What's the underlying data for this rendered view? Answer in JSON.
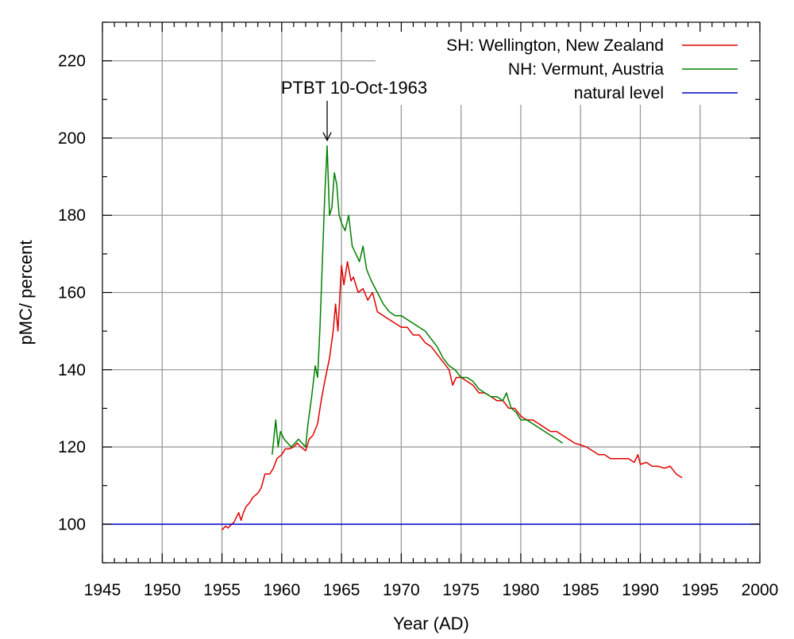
{
  "chart_data": {
    "type": "line",
    "xlabel": "Year (AD)",
    "ylabel": "pMC/ percent",
    "xlim": [
      1945,
      2000
    ],
    "ylim": [
      90,
      230
    ],
    "xticks": [
      1945,
      1950,
      1955,
      1960,
      1965,
      1970,
      1975,
      1980,
      1985,
      1990,
      1995,
      2000
    ],
    "yticks": [
      100,
      120,
      140,
      160,
      180,
      200,
      220
    ],
    "grid": true,
    "legend_position": "top-right",
    "annotation": {
      "text": "PTBT 10-Oct-1963",
      "x": 1963.8,
      "y": 199
    },
    "series": [
      {
        "name": "SH: Wellington, New Zealand",
        "color": "#e00000",
        "x": [
          1955.0,
          1955.3,
          1955.5,
          1955.8,
          1956.0,
          1956.4,
          1956.6,
          1956.8,
          1957.0,
          1957.3,
          1957.6,
          1958.0,
          1958.3,
          1958.6,
          1959.0,
          1959.3,
          1959.6,
          1960.0,
          1960.3,
          1960.6,
          1961.0,
          1961.3,
          1961.6,
          1962.0,
          1962.3,
          1962.6,
          1963.0,
          1963.3,
          1963.6,
          1964.0,
          1964.3,
          1964.5,
          1964.7,
          1965.0,
          1965.2,
          1965.5,
          1965.8,
          1966.0,
          1966.4,
          1966.8,
          1967.2,
          1967.6,
          1968.0,
          1968.5,
          1969.0,
          1969.5,
          1970.0,
          1970.5,
          1971.0,
          1971.5,
          1972.0,
          1972.5,
          1973.0,
          1973.5,
          1974.0,
          1974.3,
          1974.6,
          1975.0,
          1975.5,
          1976.0,
          1976.5,
          1977.0,
          1977.5,
          1978.0,
          1978.5,
          1979.0,
          1979.5,
          1980.0,
          1980.5,
          1981.0,
          1981.5,
          1982.0,
          1982.5,
          1983.0,
          1983.5,
          1984.0,
          1984.5,
          1985.0,
          1985.5,
          1986.0,
          1986.5,
          1987.0,
          1987.5,
          1988.0,
          1988.5,
          1989.0,
          1989.5,
          1989.8,
          1990.0,
          1990.5,
          1991.0,
          1991.5,
          1992.0,
          1992.5,
          1993.0,
          1993.5
        ],
        "values": [
          98.5,
          99.5,
          99,
          100,
          100.5,
          103,
          101,
          103,
          104.5,
          105.5,
          107,
          108,
          109.5,
          113,
          113,
          114.5,
          117,
          118,
          119.5,
          119.5,
          120,
          121,
          120,
          119,
          122,
          123,
          126,
          132,
          137,
          143,
          150,
          157,
          150,
          167,
          162,
          168,
          163,
          164,
          160,
          161,
          158,
          160,
          155,
          154,
          153,
          152,
          151,
          151,
          149,
          149,
          147,
          146,
          144,
          142,
          140,
          136,
          138,
          138,
          137,
          136,
          134,
          134,
          133,
          132,
          132,
          130,
          130,
          128,
          127,
          127,
          126,
          125,
          124,
          124,
          123,
          122,
          121,
          120.5,
          120,
          119,
          118,
          118,
          117,
          117,
          117,
          117,
          116,
          118,
          115.5,
          116,
          115,
          115,
          114.5,
          115,
          113,
          112
        ]
      },
      {
        "name": "NH: Vermunt, Austria",
        "color": "#008000",
        "x": [
          1959.2,
          1959.5,
          1959.7,
          1959.9,
          1960.2,
          1960.5,
          1960.8,
          1961.1,
          1961.4,
          1961.7,
          1962.0,
          1962.2,
          1962.5,
          1962.8,
          1963.0,
          1963.2,
          1963.4,
          1963.6,
          1963.8,
          1964.0,
          1964.2,
          1964.4,
          1964.6,
          1964.8,
          1965.0,
          1965.3,
          1965.6,
          1965.9,
          1966.2,
          1966.5,
          1966.8,
          1967.1,
          1967.5,
          1968.0,
          1968.5,
          1969.0,
          1969.5,
          1970.0,
          1970.5,
          1971.0,
          1971.5,
          1972.0,
          1972.5,
          1973.0,
          1973.5,
          1974.0,
          1974.5,
          1975.0,
          1975.5,
          1976.0,
          1976.5,
          1977.0,
          1977.5,
          1978.0,
          1978.5,
          1978.8,
          1979.2,
          1979.6,
          1980.0,
          1980.5,
          1981.0,
          1981.5,
          1982.0,
          1982.5,
          1983.0,
          1983.5
        ],
        "values": [
          118,
          127,
          120,
          124,
          122,
          121,
          120,
          121,
          122,
          121,
          120,
          126,
          133,
          141,
          138,
          151,
          168,
          185,
          198,
          180,
          182,
          191,
          188,
          180,
          178,
          176,
          180,
          172,
          170,
          168,
          172,
          166,
          163,
          160,
          157,
          155,
          154,
          154,
          153,
          152,
          151,
          150,
          148,
          146,
          143,
          141,
          140,
          138,
          138,
          137,
          135,
          134,
          133,
          133,
          132,
          134,
          130,
          129,
          127,
          127,
          126,
          125,
          124,
          123,
          122,
          121
        ]
      },
      {
        "name": "natural level",
        "color": "#0000cc",
        "x": [
          1945,
          2000
        ],
        "values": [
          100,
          100
        ]
      }
    ]
  }
}
